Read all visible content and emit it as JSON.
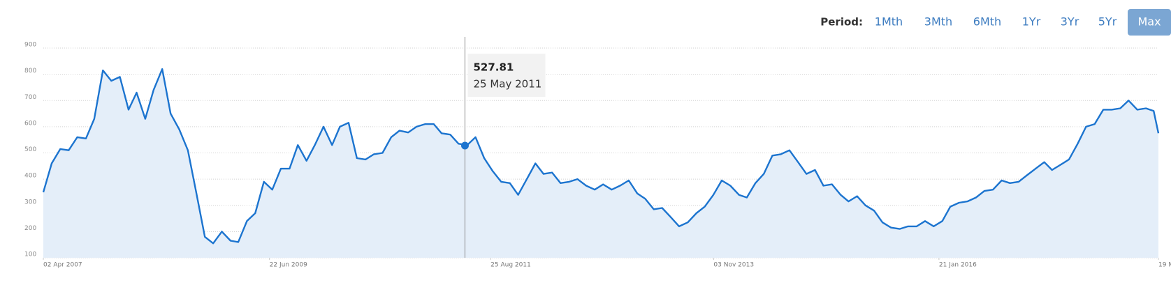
{
  "period_selector": {
    "label": "Period:",
    "options": [
      "1Mth",
      "3Mth",
      "6Mth",
      "1Yr",
      "3Yr",
      "5Yr",
      "Max"
    ],
    "active_index": 6
  },
  "chart_data": {
    "type": "area",
    "color": "#1c74cf",
    "fill": "#e4eef9",
    "grid": true,
    "x": [
      "2007-04-02",
      "2007-05-02",
      "2007-06-02",
      "2007-07-02",
      "2007-08-02",
      "2007-09-02",
      "2007-10-02",
      "2007-11-02",
      "2007-12-02",
      "2008-01-02",
      "2008-02-02",
      "2008-03-02",
      "2008-04-02",
      "2008-05-02",
      "2008-06-02",
      "2008-07-02",
      "2008-08-02",
      "2008-09-02",
      "2008-10-02",
      "2008-11-02",
      "2008-12-02",
      "2009-01-02",
      "2009-02-02",
      "2009-03-02",
      "2009-04-02",
      "2009-05-02",
      "2009-06-02",
      "2009-07-02",
      "2009-08-02",
      "2009-09-02",
      "2009-10-02",
      "2009-11-02",
      "2009-12-02",
      "2010-01-02",
      "2010-02-02",
      "2010-03-02",
      "2010-04-02",
      "2010-05-02",
      "2010-06-02",
      "2010-07-02",
      "2010-08-02",
      "2010-09-02",
      "2010-10-02",
      "2010-11-02",
      "2010-12-02",
      "2011-01-02",
      "2011-02-02",
      "2011-03-02",
      "2011-04-02",
      "2011-05-02",
      "2011-06-02",
      "2011-07-02",
      "2011-08-02",
      "2011-09-02",
      "2011-10-02",
      "2011-11-02",
      "2011-12-02",
      "2012-01-02",
      "2012-02-02",
      "2012-03-02",
      "2012-04-02",
      "2012-05-02",
      "2012-06-02",
      "2012-07-02",
      "2012-08-02",
      "2012-09-02",
      "2012-10-02",
      "2012-11-02",
      "2012-12-02",
      "2013-01-02",
      "2013-02-02",
      "2013-03-02",
      "2013-04-02",
      "2013-05-02",
      "2013-06-02",
      "2013-07-02",
      "2013-08-02",
      "2013-09-02",
      "2013-10-02",
      "2013-11-02",
      "2013-12-02",
      "2014-01-02",
      "2014-02-02",
      "2014-03-02",
      "2014-04-02",
      "2014-05-02",
      "2014-06-02",
      "2014-07-02",
      "2014-08-02",
      "2014-09-02",
      "2014-10-02",
      "2014-11-02",
      "2014-12-02",
      "2015-01-02",
      "2015-02-02",
      "2015-03-02",
      "2015-04-02",
      "2015-05-02",
      "2015-06-02",
      "2015-07-02",
      "2015-08-02",
      "2015-09-02",
      "2015-10-02",
      "2015-11-02",
      "2015-12-02",
      "2016-01-02",
      "2016-02-02",
      "2016-03-02",
      "2016-04-02",
      "2016-05-02",
      "2016-06-02",
      "2016-07-02",
      "2016-08-02",
      "2016-09-02",
      "2016-10-02",
      "2016-11-02",
      "2016-12-02",
      "2017-01-02",
      "2017-02-02",
      "2017-03-02",
      "2017-04-02",
      "2017-05-02",
      "2017-06-02",
      "2017-07-02",
      "2017-08-02",
      "2017-09-02",
      "2017-10-02",
      "2017-11-02",
      "2017-12-02",
      "2018-01-02",
      "2018-02-02",
      "2018-03-02",
      "2018-03-19"
    ],
    "values": [
      350,
      460,
      515,
      510,
      560,
      555,
      630,
      815,
      775,
      790,
      665,
      730,
      630,
      740,
      820,
      650,
      590,
      510,
      350,
      180,
      155,
      200,
      165,
      160,
      240,
      270,
      390,
      360,
      440,
      440,
      530,
      470,
      530,
      600,
      530,
      600,
      615,
      480,
      475,
      495,
      500,
      560,
      585,
      578,
      600,
      610,
      610,
      575,
      570,
      535,
      530,
      560,
      480,
      430,
      390,
      385,
      340,
      400,
      460,
      420,
      425,
      385,
      390,
      400,
      375,
      360,
      380,
      360,
      375,
      395,
      345,
      325,
      285,
      290,
      255,
      220,
      235,
      270,
      295,
      340,
      395,
      375,
      340,
      330,
      385,
      420,
      490,
      495,
      510,
      465,
      420,
      435,
      375,
      380,
      340,
      315,
      335,
      300,
      280,
      235,
      215,
      210,
      220,
      220,
      240,
      220,
      240,
      295,
      310,
      315,
      330,
      355,
      360,
      395,
      385,
      390,
      415,
      440,
      465,
      435,
      455,
      475,
      535,
      600,
      610,
      665,
      665,
      670,
      700,
      665,
      670,
      660,
      575
    ],
    "xlim": [
      "2007-04-02",
      "2018-03-19"
    ],
    "xticks": [
      {
        "value": "2007-04-02",
        "label": "02 Apr 2007"
      },
      {
        "value": "2009-06-22",
        "label": "22 Jun 2009"
      },
      {
        "value": "2011-08-25",
        "label": "25 Aug 2011"
      },
      {
        "value": "2013-11-03",
        "label": "03 Nov 2013"
      },
      {
        "value": "2016-01-21",
        "label": "21 Jan 2016"
      },
      {
        "value": "2018-03-19",
        "label": "19 M"
      }
    ],
    "ylim": [
      100,
      900
    ],
    "yticks": [
      100,
      200,
      300,
      400,
      500,
      600,
      700,
      800,
      900
    ],
    "tooltip": {
      "value": 527.81,
      "date": "25 May 2011"
    }
  }
}
